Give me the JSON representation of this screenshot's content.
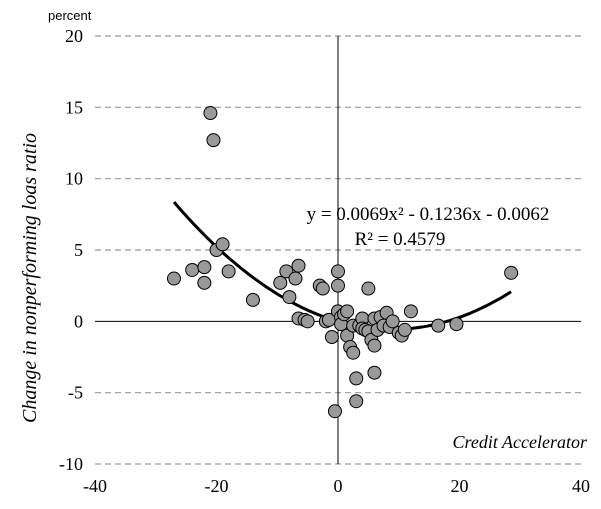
{
  "chart_data": {
    "type": "scatter",
    "unit_label": "percent",
    "ylabel": "Change in nonperforming loas ratio",
    "xlabel": "Credit Accelerator",
    "xlim": [
      -40,
      40
    ],
    "ylim": [
      -10,
      20
    ],
    "x_ticks": [
      -40,
      -20,
      0,
      20,
      40
    ],
    "y_ticks": [
      -10,
      -5,
      0,
      5,
      10,
      15,
      20
    ],
    "grid": "horizontal dashed",
    "points": [
      {
        "x": -27,
        "y": 3.0
      },
      {
        "x": -24,
        "y": 3.6
      },
      {
        "x": -22,
        "y": 3.8
      },
      {
        "x": -22,
        "y": 2.7
      },
      {
        "x": -21,
        "y": 14.6
      },
      {
        "x": -20.5,
        "y": 12.7
      },
      {
        "x": -20,
        "y": 5.0
      },
      {
        "x": -19,
        "y": 5.4
      },
      {
        "x": -18,
        "y": 3.5
      },
      {
        "x": -14,
        "y": 1.5
      },
      {
        "x": -9.5,
        "y": 2.7
      },
      {
        "x": -8.5,
        "y": 3.5
      },
      {
        "x": -8,
        "y": 1.7
      },
      {
        "x": -7,
        "y": 3.0
      },
      {
        "x": -6.5,
        "y": 3.9
      },
      {
        "x": -6.5,
        "y": 0.2
      },
      {
        "x": -5.5,
        "y": 0.1
      },
      {
        "x": -5,
        "y": 0.0
      },
      {
        "x": -3,
        "y": 2.5
      },
      {
        "x": -2.5,
        "y": 2.3
      },
      {
        "x": -2,
        "y": 0.0
      },
      {
        "x": -1.5,
        "y": 0.1
      },
      {
        "x": -1,
        "y": -1.1
      },
      {
        "x": -0.5,
        "y": -6.3
      },
      {
        "x": 0,
        "y": 3.5
      },
      {
        "x": 0,
        "y": 2.5
      },
      {
        "x": 0,
        "y": 0.7
      },
      {
        "x": 0.5,
        "y": 0.3
      },
      {
        "x": 0.5,
        "y": -0.2
      },
      {
        "x": 1,
        "y": 0.5
      },
      {
        "x": 1.5,
        "y": 0.7
      },
      {
        "x": 1.5,
        "y": -1.0
      },
      {
        "x": 2,
        "y": -1.8
      },
      {
        "x": 2.5,
        "y": -0.3
      },
      {
        "x": 2.5,
        "y": -2.2
      },
      {
        "x": 3,
        "y": -4.0
      },
      {
        "x": 3,
        "y": -5.6
      },
      {
        "x": 3.5,
        "y": -0.3
      },
      {
        "x": 4,
        "y": 0.2
      },
      {
        "x": 4,
        "y": -0.5
      },
      {
        "x": 4.5,
        "y": -0.6
      },
      {
        "x": 5,
        "y": 2.3
      },
      {
        "x": 5,
        "y": -0.7
      },
      {
        "x": 5.5,
        "y": -1.3
      },
      {
        "x": 6,
        "y": -1.7
      },
      {
        "x": 6,
        "y": -3.6
      },
      {
        "x": 6,
        "y": 0.2
      },
      {
        "x": 6.5,
        "y": -0.6
      },
      {
        "x": 7,
        "y": 0.3
      },
      {
        "x": 7.5,
        "y": -0.3
      },
      {
        "x": 8,
        "y": 0.6
      },
      {
        "x": 8.5,
        "y": -0.4
      },
      {
        "x": 9,
        "y": 0.0
      },
      {
        "x": 10,
        "y": -0.8
      },
      {
        "x": 10.5,
        "y": -1.0
      },
      {
        "x": 11,
        "y": -0.6
      },
      {
        "x": 12,
        "y": 0.7
      },
      {
        "x": 16.5,
        "y": -0.3
      },
      {
        "x": 19.5,
        "y": -0.2
      },
      {
        "x": 28.5,
        "y": 3.4
      }
    ],
    "trendline": {
      "type": "polynomial",
      "coefficients": {
        "a": 0.0069,
        "b": -0.1236,
        "c": -0.0062
      },
      "x_range": [
        -27,
        28.5
      ],
      "equation_label": "y = 0.0069x² - 0.1236x - 0.0062",
      "r2_label": "R² = 0.4579"
    },
    "colors": {
      "marker_fill": "#999999",
      "marker_stroke": "#000000",
      "grid": "#999999",
      "axis": "#000000"
    }
  }
}
